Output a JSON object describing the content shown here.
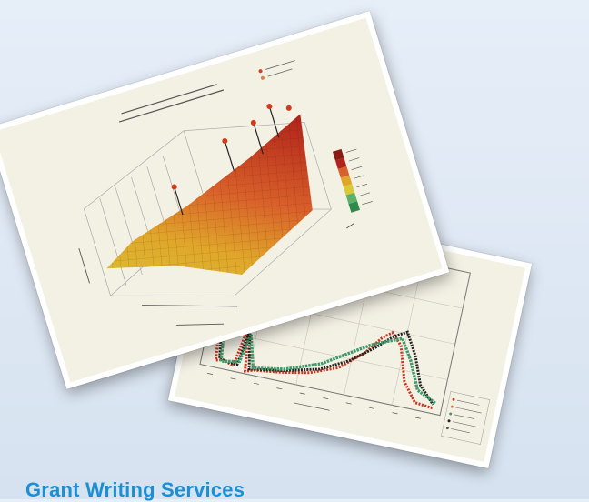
{
  "heading": "Grant Writing Services"
}
